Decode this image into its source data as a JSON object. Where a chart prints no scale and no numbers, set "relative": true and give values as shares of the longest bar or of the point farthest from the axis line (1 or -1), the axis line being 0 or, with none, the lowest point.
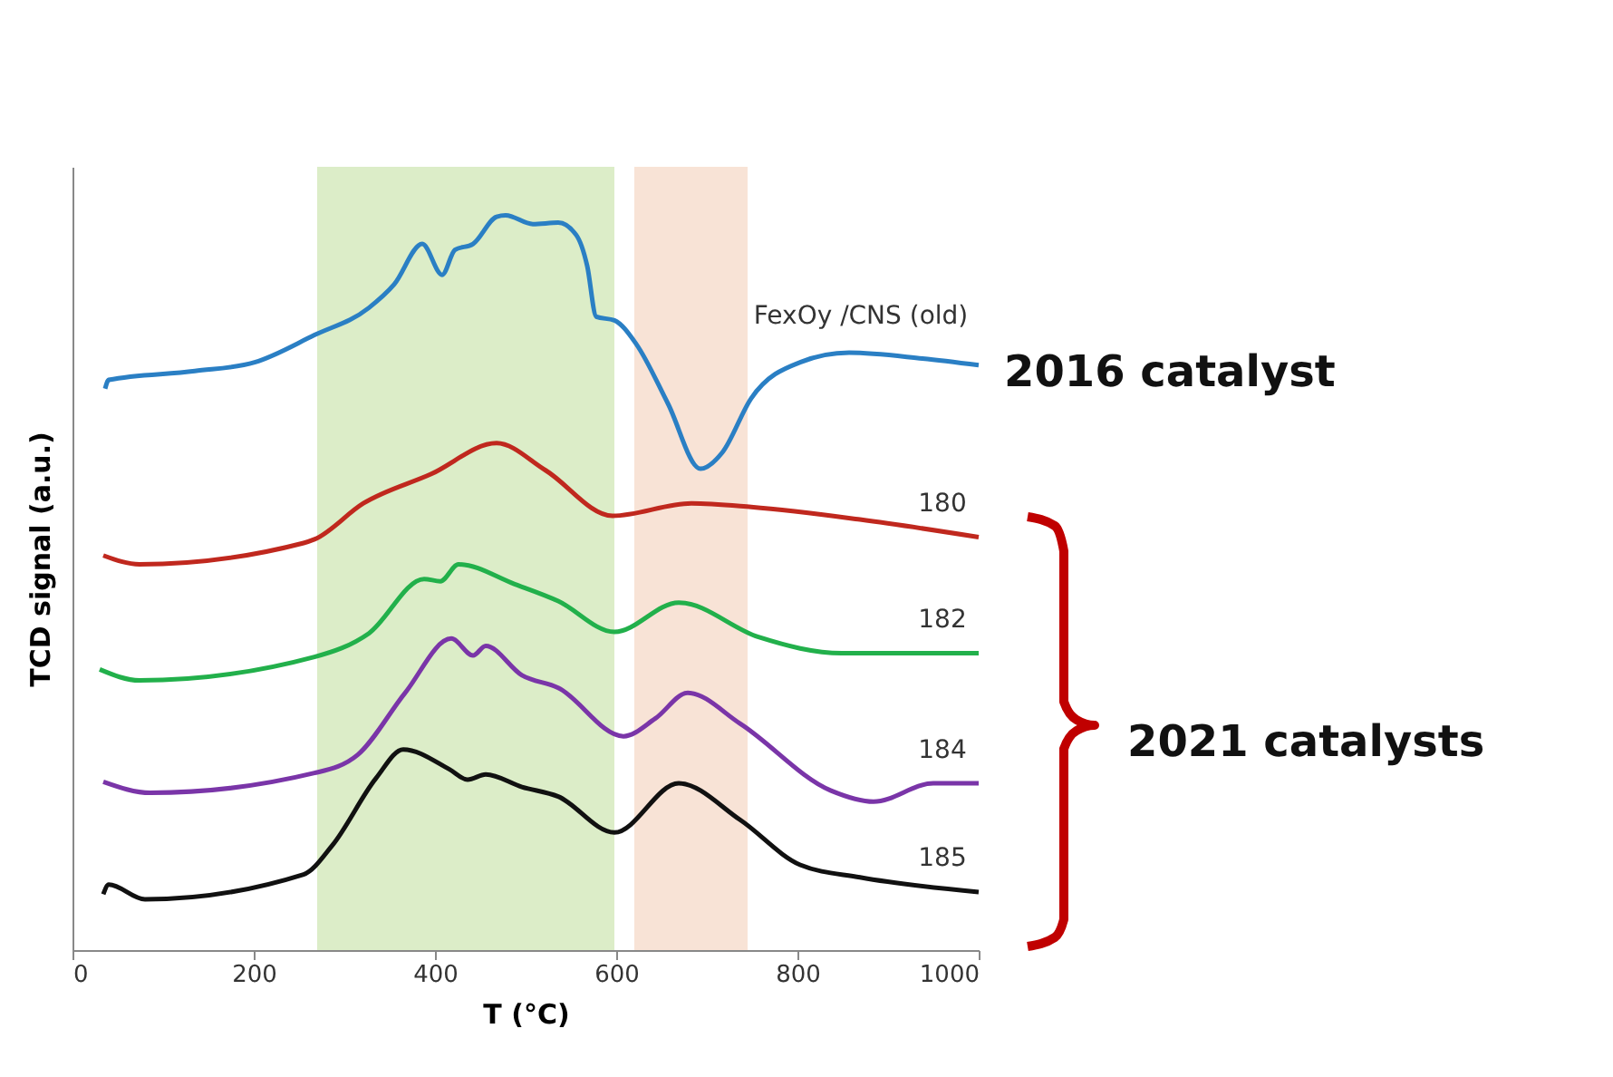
{
  "chart_data": {
    "type": "line",
    "relative": true,
    "xlabel": "T (°C)",
    "ylabel": "TCD signal (a.u.)",
    "xlim": [
      0,
      1000
    ],
    "xticks": [
      0,
      200,
      400,
      600,
      800,
      1000
    ],
    "grid": false,
    "line_style": "solid",
    "marker": "none",
    "tick_labels": "x",
    "series": [
      {
        "name": "FexOy /CNS (old)",
        "color": "#2a7fc4",
        "x": [
          36,
          40,
          135,
          201,
          267,
          327,
          355,
          386,
          408,
          422,
          442,
          468,
          478,
          508,
          536,
          556,
          568,
          578,
          598,
          622,
          657,
          693,
          717,
          749,
          803,
          857,
          938,
          1000
        ],
        "values": [
          0.764,
          0.776,
          0.788,
          0.8,
          0.837,
          0.874,
          0.906,
          0.961,
          0.919,
          0.953,
          0.961,
          0.998,
          1.0,
          0.988,
          0.99,
          0.973,
          0.931,
          0.862,
          0.857,
          0.825,
          0.744,
          0.655,
          0.677,
          0.751,
          0.8,
          0.813,
          0.805,
          0.796
        ]
      },
      {
        "name": "180",
        "color": "#c0281e",
        "x": [
          34,
          74,
          255,
          267,
          321,
          396,
          468,
          522,
          596,
          683,
          749,
          869,
          1000
        ],
        "values": [
          0.537,
          0.525,
          0.554,
          0.559,
          0.608,
          0.648,
          0.69,
          0.653,
          0.591,
          0.608,
          0.603,
          0.586,
          0.562
        ]
      },
      {
        "name": "182",
        "color": "#22b04b",
        "x": [
          30,
          74,
          267,
          327,
          388,
          406,
          426,
          488,
          536,
          598,
          669,
          757,
          849,
          1000
        ],
        "values": [
          0.382,
          0.367,
          0.399,
          0.431,
          0.505,
          0.502,
          0.525,
          0.498,
          0.475,
          0.433,
          0.473,
          0.426,
          0.404,
          0.404
        ]
      },
      {
        "name": "184",
        "color": "#7a35a8",
        "x": [
          34,
          86,
          267,
          315,
          367,
          418,
          442,
          456,
          496,
          536,
          608,
          643,
          679,
          737,
          837,
          884,
          950,
          1000
        ],
        "values": [
          0.229,
          0.214,
          0.241,
          0.266,
          0.35,
          0.424,
          0.401,
          0.414,
          0.374,
          0.357,
          0.291,
          0.315,
          0.35,
          0.308,
          0.217,
          0.202,
          0.227,
          0.227
        ]
      },
      {
        "name": "185",
        "color": "#111111",
        "x": [
          34,
          40,
          80,
          255,
          287,
          335,
          365,
          416,
          436,
          456,
          496,
          536,
          598,
          669,
          737,
          803,
          869,
          1000
        ],
        "values": [
          0.076,
          0.089,
          0.069,
          0.103,
          0.143,
          0.234,
          0.273,
          0.246,
          0.232,
          0.239,
          0.222,
          0.209,
          0.16,
          0.227,
          0.177,
          0.116,
          0.099,
          0.079
        ]
      }
    ],
    "bands": [
      {
        "axis": "x",
        "from": 270,
        "to": 598,
        "color": "#dcedc8"
      },
      {
        "axis": "x",
        "from": 620,
        "to": 745,
        "color": "#f8e3d6"
      }
    ],
    "annotations": [
      "2016 catalyst",
      "2021 catalysts"
    ]
  }
}
